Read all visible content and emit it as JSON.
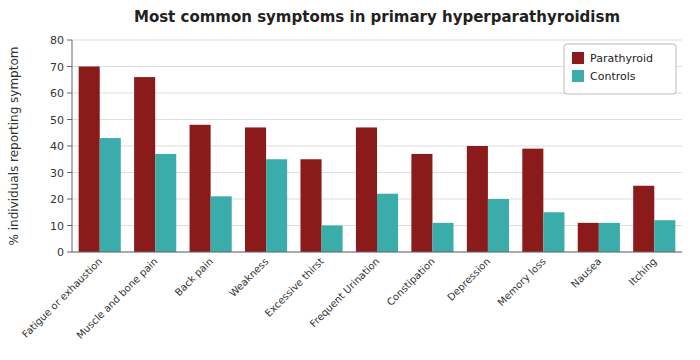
{
  "chart_data": {
    "type": "bar",
    "title": "Most common symptoms in primary hyperparathyroidism",
    "ylabel": "% individuals reporting symptom",
    "categories": [
      "Fatigue or exhaustion",
      "Muscle and bone pain",
      "Back pain",
      "Weakness",
      "Excessive thirst",
      "Frequent Urination",
      "Constipation",
      "Depression",
      "Memory loss",
      "Nausea",
      "Itching"
    ],
    "series": [
      {
        "name": "Parathyroid",
        "color": "#8B1A1A",
        "values": [
          70,
          66,
          48,
          47,
          35,
          47,
          37,
          40,
          39,
          11,
          25
        ]
      },
      {
        "name": "Controls",
        "color": "#3AADAA",
        "values": [
          43,
          37,
          21,
          35,
          10,
          22,
          11,
          20,
          15,
          11,
          12
        ]
      }
    ],
    "ylim": [
      0,
      80
    ],
    "yticks": [
      0,
      10,
      20,
      30,
      40,
      50,
      60,
      70,
      80
    ],
    "grid": true,
    "legend": "upper right"
  }
}
